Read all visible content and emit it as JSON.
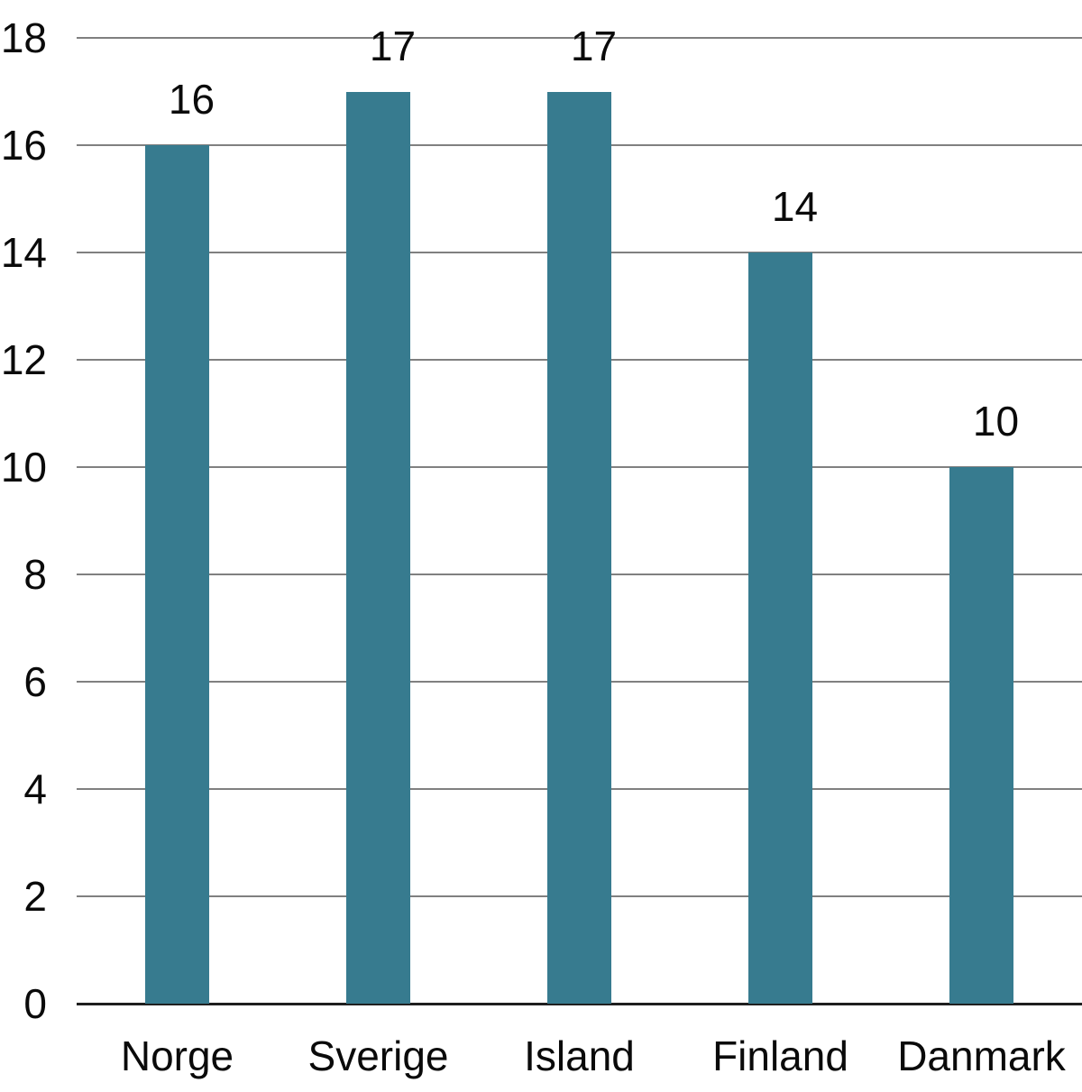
{
  "chart_data": {
    "type": "bar",
    "categories": [
      "Norge",
      "Sverige",
      "Island",
      "Finland",
      "Danmark"
    ],
    "values": [
      16,
      17,
      17,
      14,
      10
    ],
    "bar_labels": [
      "16",
      "17",
      "17",
      "14",
      "10"
    ],
    "title": "",
    "xlabel": "",
    "ylabel": "",
    "ylim": [
      0,
      18
    ],
    "yticks": [
      0,
      2,
      4,
      6,
      8,
      10,
      12,
      14,
      16,
      18
    ],
    "grid": true,
    "legend": "none",
    "colors": {
      "bar": "#377B8F",
      "gridline": "#808080",
      "axis": "#1f1f1f",
      "text": "#0a0a0a",
      "background": "#ffffff"
    }
  }
}
